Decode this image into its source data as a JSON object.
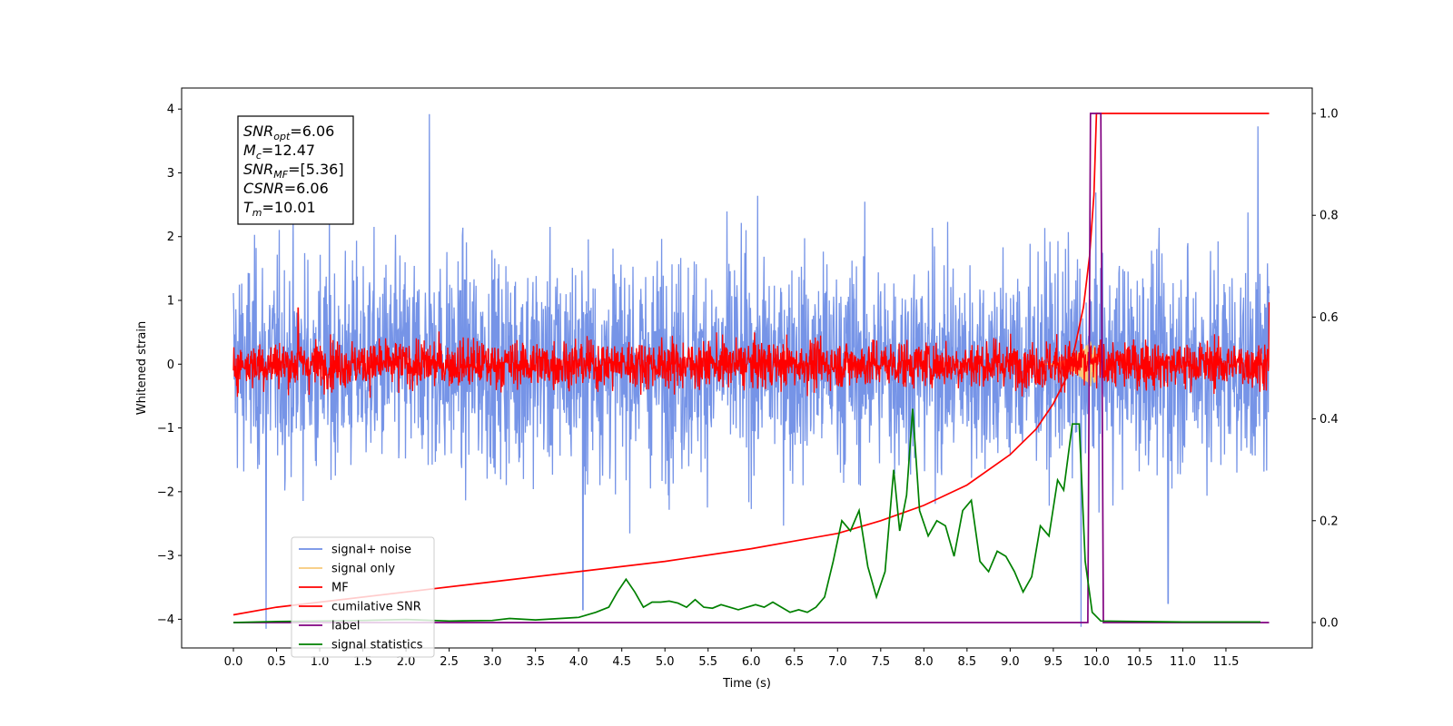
{
  "chart_data": {
    "type": "line",
    "xlabel": "Time (s)",
    "ylabel": "Whitened strain",
    "xlim": [
      -0.6,
      12.5
    ],
    "ylim_left": [
      -4.45,
      4.33
    ],
    "ylim_right": [
      -0.05,
      1.05
    ],
    "x_ticks": [
      0.0,
      0.5,
      1.0,
      1.5,
      2.0,
      2.5,
      3.0,
      3.5,
      4.0,
      4.5,
      5.0,
      5.5,
      6.0,
      6.5,
      7.0,
      7.5,
      8.0,
      8.5,
      9.0,
      9.5,
      10.0,
      10.5,
      11.0,
      11.5
    ],
    "x_tick_labels": [
      "0.0",
      "0.5",
      "1.0",
      "1.5",
      "2.0",
      "2.5",
      "3.0",
      "3.5",
      "4.0",
      "4.5",
      "5.0",
      "5.5",
      "6.0",
      "6.5",
      "7.0",
      "7.5",
      "8.0",
      "8.5",
      "9.0",
      "9.5",
      "10.0",
      "10.5",
      "11.0",
      "11.5"
    ],
    "y_ticks_left": [
      4,
      3,
      2,
      1,
      0,
      -1,
      -2,
      -3,
      -4
    ],
    "y_tick_labels_left": [
      "4",
      "3",
      "2",
      "1",
      "0",
      "−1",
      "−2",
      "−3",
      "−4"
    ],
    "y_ticks_right": [
      1.0,
      0.8,
      0.6,
      0.4,
      0.2,
      0.0
    ],
    "y_tick_labels_right": [
      "1.0",
      "0.8",
      "0.6",
      "0.4",
      "0.2",
      "0.0"
    ],
    "annotation": [
      {
        "base": "SNR",
        "sub": "opt",
        "value": "=6.06"
      },
      {
        "base": "M",
        "sub": "c",
        "value": "=12.47"
      },
      {
        "base": "SNR",
        "sub": "MF",
        "value": "=[5.36]"
      },
      {
        "base": "CSNR",
        "sub": "",
        "value": "=6.06"
      },
      {
        "base": "T",
        "sub": "m",
        "value": "=10.01"
      }
    ],
    "legend": {
      "position": "lower-left",
      "entries": [
        {
          "label": "signal+ noise",
          "color": "#6f8ee6"
        },
        {
          "label": "signal only",
          "color": "#f7c97a"
        },
        {
          "label": "MF",
          "color": "#ff0000"
        },
        {
          "label": "cumilative SNR",
          "color": "#ff0000"
        },
        {
          "label": "label",
          "color": "#800080"
        },
        {
          "label": "signal statistics",
          "color": "#008000"
        }
      ]
    },
    "series": [
      {
        "name": "signal+ noise",
        "axis": "left",
        "style": "noise",
        "color": "#6f8ee6",
        "x_range": [
          0.0,
          12.0
        ],
        "mean": 0.0,
        "amplitude": 1.35,
        "peaks": [
          [
            2.27,
            3.92
          ],
          [
            11.87,
            3.73
          ],
          [
            0.38,
            -4.15
          ],
          [
            4.05,
            -3.85
          ],
          [
            9.82,
            -4.12
          ],
          [
            10.83,
            -3.75
          ]
        ]
      },
      {
        "name": "signal only",
        "axis": "left",
        "style": "chirp",
        "color": "#f7c97a",
        "x_range": [
          9.4,
          10.0
        ],
        "peak_amplitude": 0.45
      },
      {
        "name": "MF",
        "axis": "left",
        "style": "noise",
        "color": "#ff0000",
        "x_range": [
          0.0,
          12.0
        ],
        "mean": 0.0,
        "amplitude": 0.3,
        "peaks": [
          [
            0.0,
            1.0
          ],
          [
            0.75,
            0.88
          ],
          [
            12.0,
            0.97
          ],
          [
            0.0,
            -0.1
          ]
        ]
      },
      {
        "name": "cumilative SNR",
        "axis": "right",
        "color": "#ff0000",
        "x": [
          0.0,
          0.5,
          1.0,
          2.0,
          3.0,
          4.0,
          5.0,
          6.0,
          6.5,
          7.0,
          7.5,
          8.0,
          8.5,
          9.0,
          9.3,
          9.5,
          9.65,
          9.75,
          9.85,
          9.92,
          9.97,
          10.0,
          12.0
        ],
        "y": [
          0.015,
          0.03,
          0.04,
          0.06,
          0.08,
          0.1,
          0.12,
          0.145,
          0.16,
          0.175,
          0.2,
          0.23,
          0.27,
          0.33,
          0.38,
          0.43,
          0.48,
          0.54,
          0.62,
          0.72,
          0.84,
          1.0,
          1.0
        ]
      },
      {
        "name": "label",
        "axis": "right",
        "color": "#800080",
        "x": [
          0.0,
          9.9,
          9.93,
          10.05,
          10.08,
          12.0
        ],
        "y": [
          0.0,
          0.0,
          1.0,
          1.0,
          0.0,
          0.0
        ]
      },
      {
        "name": "signal statistics",
        "axis": "right",
        "color": "#008000",
        "x": [
          0.0,
          0.5,
          1.0,
          1.5,
          2.0,
          2.5,
          3.0,
          3.2,
          3.5,
          4.0,
          4.2,
          4.35,
          4.45,
          4.55,
          4.65,
          4.75,
          4.85,
          4.95,
          5.05,
          5.15,
          5.25,
          5.35,
          5.45,
          5.55,
          5.65,
          5.75,
          5.85,
          5.95,
          6.05,
          6.15,
          6.25,
          6.35,
          6.45,
          6.55,
          6.65,
          6.75,
          6.85,
          6.95,
          7.05,
          7.15,
          7.25,
          7.35,
          7.45,
          7.55,
          7.65,
          7.72,
          7.8,
          7.87,
          7.95,
          8.05,
          8.15,
          8.25,
          8.35,
          8.45,
          8.55,
          8.65,
          8.75,
          8.85,
          8.95,
          9.05,
          9.15,
          9.25,
          9.35,
          9.45,
          9.55,
          9.62,
          9.72,
          9.8,
          9.87,
          9.95,
          10.05,
          10.5,
          11.0,
          11.5,
          11.9
        ],
        "y": [
          0.0,
          0.002,
          0.003,
          0.004,
          0.006,
          0.003,
          0.004,
          0.008,
          0.005,
          0.01,
          0.02,
          0.03,
          0.06,
          0.085,
          0.06,
          0.03,
          0.04,
          0.04,
          0.042,
          0.038,
          0.03,
          0.045,
          0.03,
          0.028,
          0.035,
          0.03,
          0.025,
          0.03,
          0.035,
          0.03,
          0.04,
          0.03,
          0.02,
          0.025,
          0.02,
          0.03,
          0.05,
          0.12,
          0.2,
          0.18,
          0.22,
          0.11,
          0.05,
          0.1,
          0.3,
          0.18,
          0.25,
          0.42,
          0.22,
          0.17,
          0.2,
          0.19,
          0.13,
          0.22,
          0.24,
          0.12,
          0.1,
          0.14,
          0.13,
          0.1,
          0.06,
          0.09,
          0.19,
          0.17,
          0.28,
          0.26,
          0.39,
          0.39,
          0.12,
          0.02,
          0.003,
          0.002,
          0.001,
          0.001,
          0.001
        ]
      }
    ]
  }
}
